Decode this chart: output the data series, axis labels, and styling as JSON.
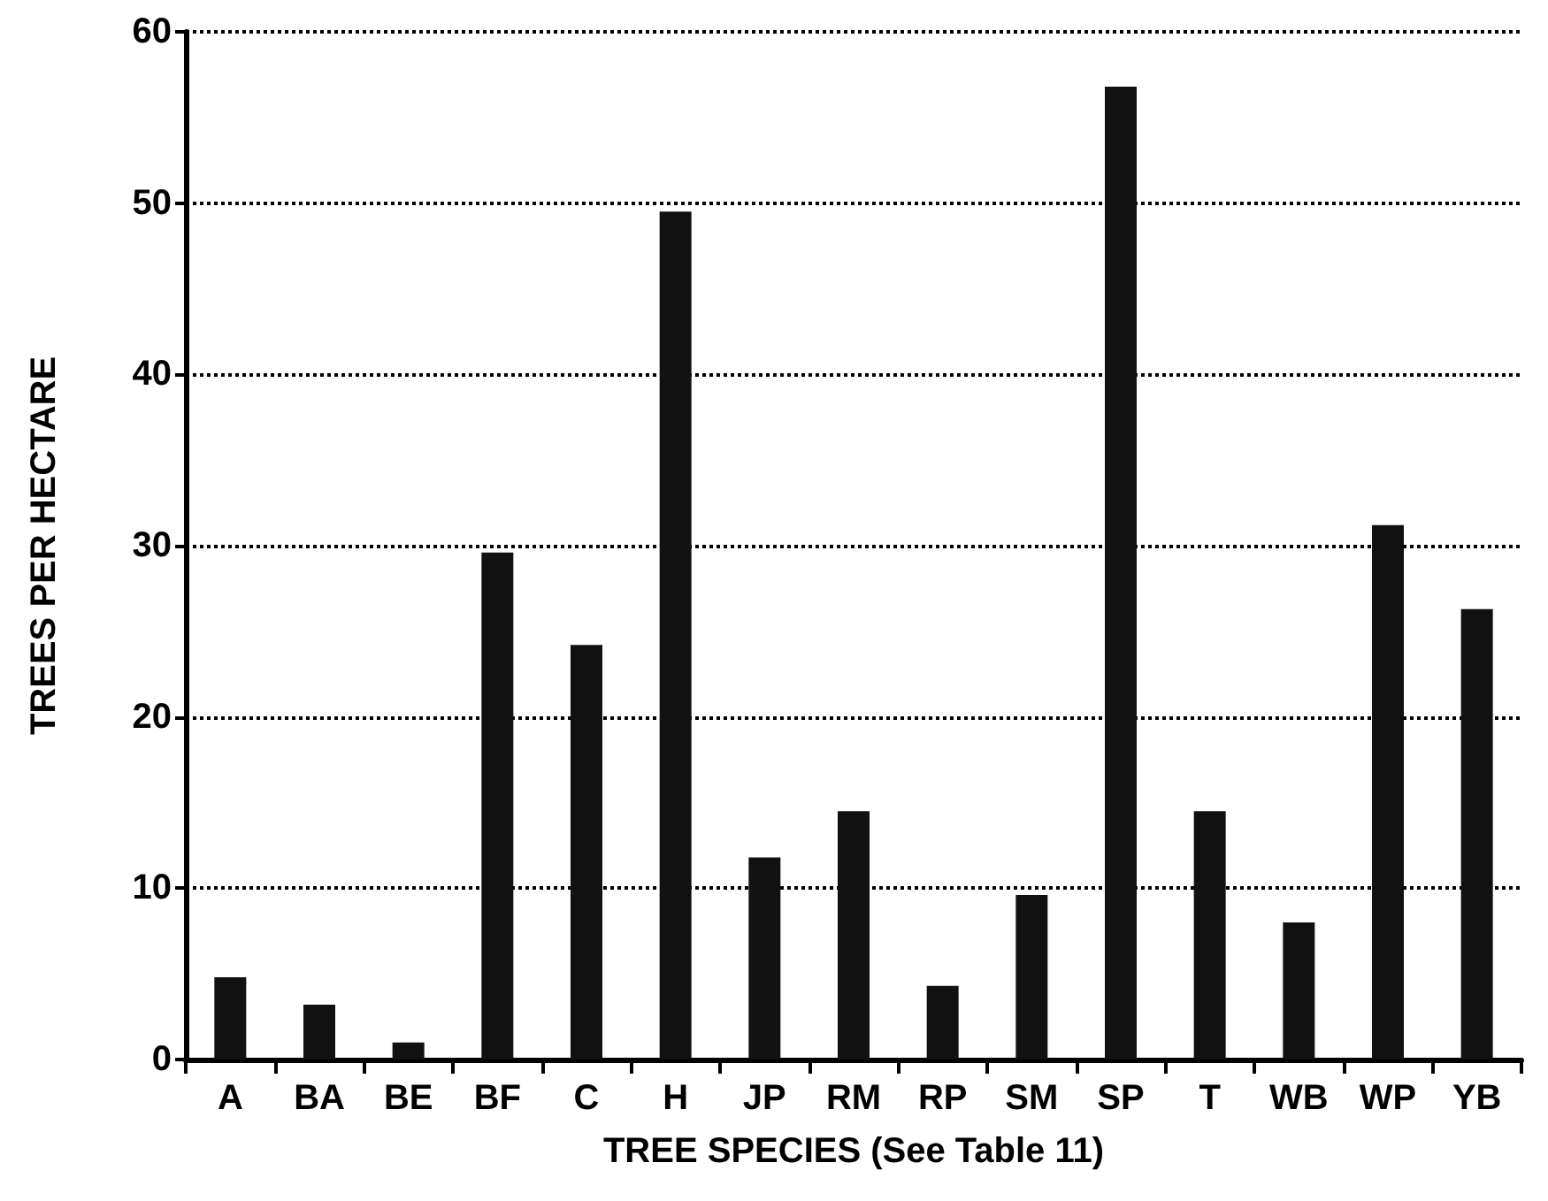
{
  "chart_data": {
    "type": "bar",
    "xlabel": "TREE SPECIES (See Table 11)",
    "ylabel": "TREES PER HECTARE",
    "categories": [
      "A",
      "BA",
      "BE",
      "BF",
      "C",
      "H",
      "JP",
      "RM",
      "RP",
      "SM",
      "SP",
      "T",
      "WB",
      "WP",
      "YB"
    ],
    "values": [
      4.8,
      3.2,
      1.0,
      29.6,
      24.2,
      49.5,
      11.8,
      14.5,
      4.3,
      9.6,
      56.8,
      14.5,
      8.0,
      31.2,
      26.3
    ],
    "color": "#111111",
    "ylim": [
      0,
      60
    ],
    "yticks": [
      0,
      10,
      20,
      30,
      40,
      50,
      60
    ],
    "grid": "y"
  }
}
